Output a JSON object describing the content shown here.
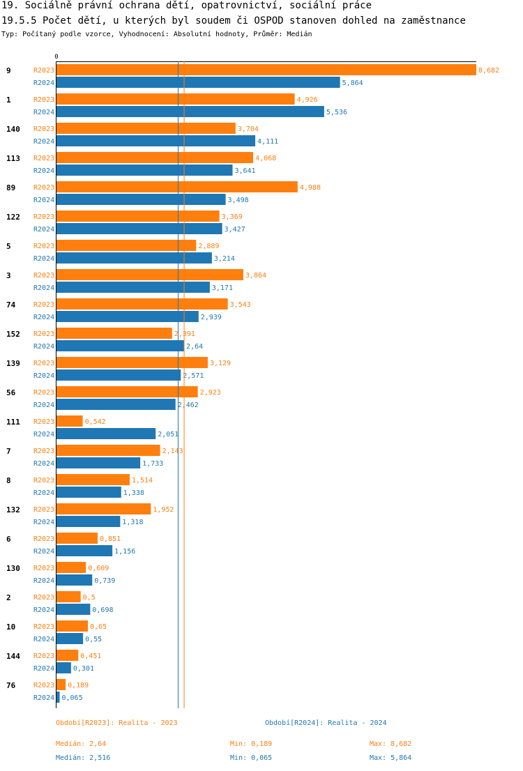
{
  "header": {
    "title": "19. Sociálně právní ochrana dětí, opatrovnictví, sociální práce",
    "subtitle": "19.5.5 Počet dětí, u kterých byl soudem či OSPOD stanoven dohled na zaměstnance",
    "meta": "Typ: Počítaný podle vzorce, Vyhodnocení: Absolutní hodnoty, Průměr: Medián"
  },
  "chart_data": {
    "type": "bar",
    "orientation": "horizontal",
    "xlim": [
      0,
      8.682
    ],
    "x_tick_labels": [
      "0"
    ],
    "categories": [
      "9",
      "1",
      "140",
      "113",
      "89",
      "122",
      "5",
      "3",
      "74",
      "152",
      "139",
      "56",
      "111",
      "7",
      "8",
      "132",
      "6",
      "130",
      "2",
      "10",
      "144",
      "76"
    ],
    "series": [
      {
        "name": "R2023",
        "color": "#ff7f0e",
        "values": [
          8.682,
          4.926,
          3.704,
          4.068,
          4.988,
          3.369,
          2.889,
          3.864,
          3.543,
          2.391,
          3.129,
          2.923,
          0.542,
          2.143,
          1.514,
          1.952,
          0.851,
          0.609,
          0.5,
          0.65,
          0.451,
          0.189
        ],
        "labels": [
          "8,682",
          "4,926",
          "3,704",
          "4,068",
          "4,988",
          "3,369",
          "2,889",
          "3,864",
          "3,543",
          "2,391",
          "3,129",
          "2,923",
          "0,542",
          "2,143",
          "1,514",
          "1,952",
          "0,851",
          "0,609",
          "0,5",
          "0,65",
          "0,451",
          "0,189"
        ],
        "median": 2.64
      },
      {
        "name": "R2024",
        "color": "#1f77b4",
        "values": [
          5.864,
          5.536,
          4.111,
          3.641,
          3.498,
          3.427,
          3.214,
          3.171,
          2.939,
          2.64,
          2.571,
          2.462,
          2.051,
          1.733,
          1.338,
          1.318,
          1.156,
          0.739,
          0.698,
          0.55,
          0.301,
          0.065
        ],
        "labels": [
          "5,864",
          "5,536",
          "4,111",
          "3,641",
          "3,498",
          "3,427",
          "3,214",
          "3,171",
          "2,939",
          "2,64",
          "2,571",
          "2,462",
          "2,051",
          "1,733",
          "1,338",
          "1,318",
          "1,156",
          "0,739",
          "0,698",
          "0,55",
          "0,301",
          "0,065"
        ],
        "median": 2.516
      }
    ]
  },
  "footer": {
    "legend_2023": "Období[R2023]: Realita - 2023",
    "legend_2024": "Období[R2024]: Realita - 2024",
    "median_2023": "Medián: 2,64",
    "min_2023": "Min: 0,189",
    "max_2023": "Max: 8,682",
    "median_2024": "Medián: 2,516",
    "min_2024": "Min: 0,065",
    "max_2024": "Max: 5,864"
  }
}
